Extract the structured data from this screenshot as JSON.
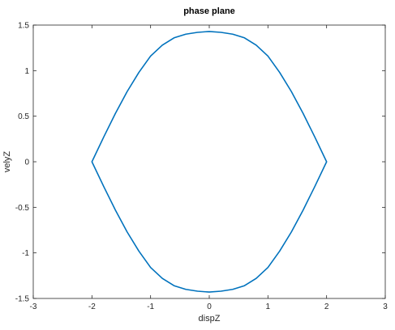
{
  "chart_data": {
    "type": "line",
    "title": "phase plane",
    "xlabel": "dispZ",
    "ylabel": "velyZ",
    "xlim": [
      -3,
      3
    ],
    "ylim": [
      -1.5,
      1.5
    ],
    "xticks": [
      -3,
      -2,
      -1,
      0,
      1,
      2,
      3
    ],
    "yticks": [
      -1.5,
      -1,
      -0.5,
      0,
      0.5,
      1,
      1.5
    ],
    "xtick_labels": [
      "-3",
      "-2",
      "-1",
      "0",
      "1",
      "2",
      "3"
    ],
    "ytick_labels": [
      "-1.5",
      "-1",
      "-0.5",
      "0",
      "0.5",
      "1",
      "1.5"
    ],
    "grid": false,
    "series": [
      {
        "color": "#0072BD",
        "x": [
          2.0,
          1.8,
          1.6,
          1.4,
          1.2,
          1.0,
          0.8,
          0.6,
          0.4,
          0.2,
          0.0,
          -0.2,
          -0.4,
          -0.6,
          -0.8,
          -1.0,
          -1.2,
          -1.4,
          -1.6,
          -1.8,
          -2.0,
          -1.8,
          -1.6,
          -1.4,
          -1.2,
          -1.0,
          -0.8,
          -0.6,
          -0.4,
          -0.2,
          0.0,
          0.2,
          0.4,
          0.6,
          0.8,
          1.0,
          1.2,
          1.4,
          1.6,
          1.8,
          2.0
        ],
        "y": [
          0.0,
          0.27,
          0.53,
          0.77,
          0.98,
          1.16,
          1.28,
          1.36,
          1.4,
          1.42,
          1.43,
          1.42,
          1.4,
          1.36,
          1.28,
          1.16,
          0.98,
          0.77,
          0.53,
          0.27,
          0.0,
          -0.27,
          -0.53,
          -0.77,
          -0.98,
          -1.16,
          -1.28,
          -1.36,
          -1.4,
          -1.42,
          -1.43,
          -1.42,
          -1.4,
          -1.36,
          -1.28,
          -1.16,
          -0.98,
          -0.77,
          -0.53,
          -0.27,
          0.0
        ]
      }
    ]
  }
}
